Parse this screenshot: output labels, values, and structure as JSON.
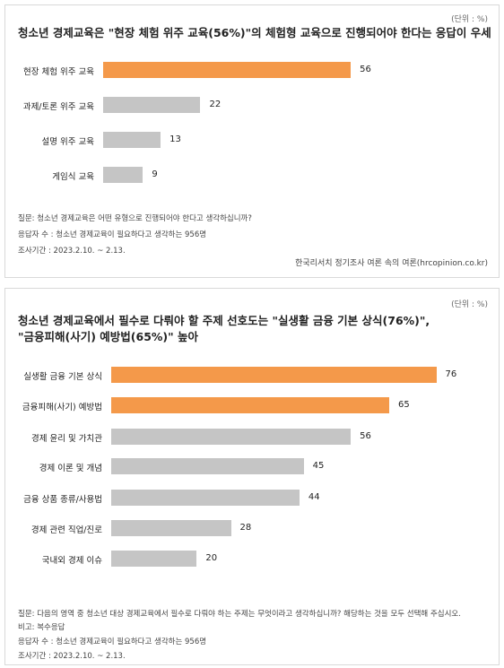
{
  "charts": [
    {
      "unit": "(단위 : %)",
      "title_lines": [
        "청소년 경제교육은 \"현장 체험 위주 교육(56%)\"의 체험형 교육으로 진행되어야 한다는 응답이 우세"
      ],
      "notes": [
        "질문: 청소년 경제교육은 어떤 유형으로 진행되어야 한다고 생각하십니까?",
        "응답자 수 : 청소년 경제교육이 필요하다고 생각하는 956명",
        "조사기간 : 2023.2.10. ~ 2.13."
      ],
      "source": "한국리서치 정기조사 여론 속의 여론(hrcopinion.co.kr)"
    },
    {
      "unit": "(단위 : %)",
      "title_lines": [
        "청소년 경제교육에서 필수로 다뤄야 할 주제 선호도는 \"실생활 금융 기본 상식(76%)\",",
        "\"금융피해(사기) 예방법(65%)\" 높아"
      ],
      "notes": [
        "질문: 다음의 영역 중 청소년 대상 경제교육에서 필수로 다뤄야 하는 주제는 무엇이라고 생각하십니까? 해당하는 것을 모두 선택해 주십시오.",
        "비고: 복수응답",
        "응답자 수 : 청소년 경제교육이 필요하다고 생각하는 956명",
        "조사기간 : 2023.2.10. ~ 2.13."
      ],
      "source": ""
    }
  ],
  "colors": {
    "highlight": "#f4994a",
    "default": "#c5c5c5"
  },
  "chart_data": [
    {
      "type": "bar",
      "orientation": "horizontal",
      "title": "청소년 경제교육은 \"현장 체험 위주 교육(56%)\"의 체험형 교육으로 진행되어야 한다는 응답이 우세",
      "unit": "%",
      "categories": [
        "현장 체험 위주 교육",
        "과제/토론 위주 교육",
        "설명 위주 교육",
        "게임식 교육"
      ],
      "values": [
        56,
        22,
        13,
        9
      ],
      "highlight": [
        true,
        false,
        false,
        false
      ],
      "xlim": [
        0,
        100
      ]
    },
    {
      "type": "bar",
      "orientation": "horizontal",
      "title": "청소년 경제교육에서 필수로 다뤄야 할 주제 선호도는 \"실생활 금융 기본 상식(76%)\", \"금융피해(사기) 예방법(65%)\" 높아",
      "unit": "%",
      "categories": [
        "실생활 금융 기본 상식",
        "금융피해(사기) 예방법",
        "경제 윤리 및 가치관",
        "경제 이론 및 개념",
        "금융 상품 종류/사용법",
        "경제 관련 직업/진로",
        "국내외 경제 이슈"
      ],
      "values": [
        76,
        65,
        56,
        45,
        44,
        28,
        20
      ],
      "highlight": [
        true,
        true,
        false,
        false,
        false,
        false,
        false
      ],
      "xlim": [
        0,
        100
      ]
    }
  ]
}
